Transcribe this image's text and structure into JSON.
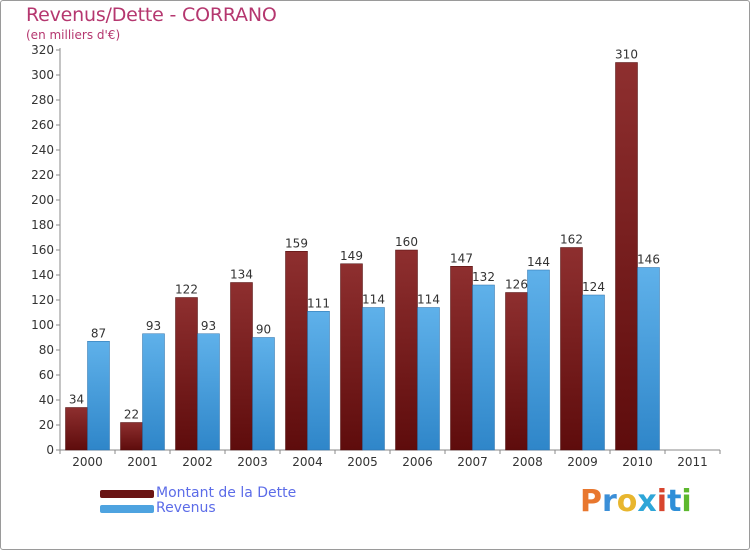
{
  "chart_data": {
    "type": "bar",
    "title": "Revenus/Dette - CORRANO",
    "subtitle": "(en milliers d'€)",
    "categories": [
      "2000",
      "2001",
      "2002",
      "2003",
      "2004",
      "2005",
      "2006",
      "2007",
      "2008",
      "2009",
      "2010",
      "2011"
    ],
    "series": [
      {
        "name": "Montant de la Dette",
        "color": "#7a1c1c",
        "values": [
          34,
          22,
          122,
          134,
          159,
          149,
          160,
          147,
          126,
          162,
          310,
          null
        ]
      },
      {
        "name": "Revenus",
        "color": "#4ea3e0",
        "values": [
          87,
          93,
          93,
          90,
          111,
          114,
          114,
          132,
          144,
          124,
          146,
          null
        ]
      }
    ],
    "ylim": [
      0,
      320
    ],
    "yticks": [
      0,
      20,
      40,
      60,
      80,
      100,
      120,
      140,
      160,
      180,
      200,
      220,
      240,
      260,
      280,
      300,
      320
    ],
    "grid": false,
    "legend_position": "bottom-left"
  },
  "logo": {
    "text": "Proxiti",
    "colors": [
      "#e8772e",
      "#3b8fd8",
      "#e8b62e",
      "#2ea6d8",
      "#d8452e",
      "#2e8fd8",
      "#5cb82e"
    ]
  }
}
